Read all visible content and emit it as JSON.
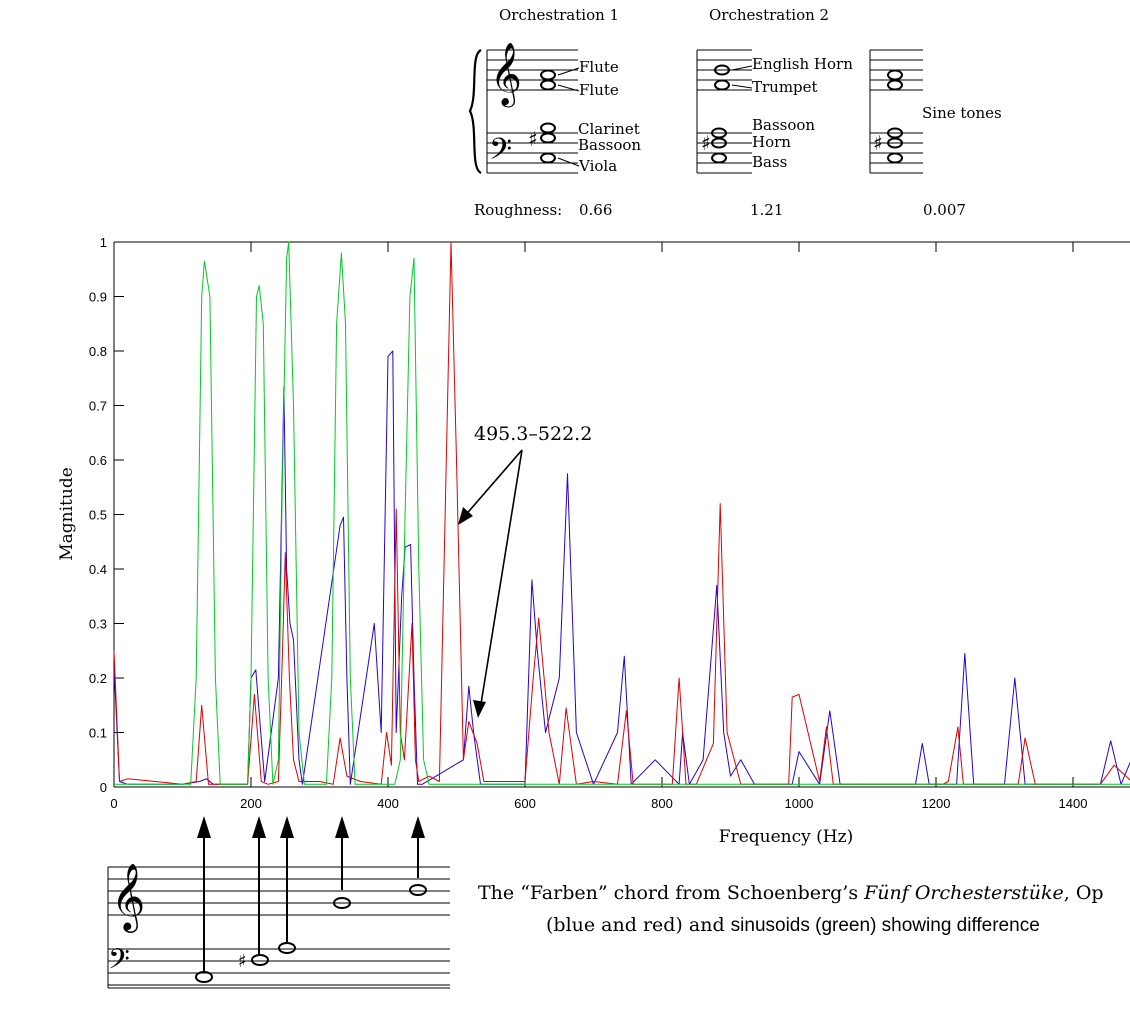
{
  "header": {
    "orchestrations": [
      {
        "title": "Orchestration 1",
        "instruments": [
          "Flute",
          "Flute",
          "Clarinet",
          "Bassoon",
          "Viola"
        ]
      },
      {
        "title": "Orchestration 2",
        "instruments": [
          "English Horn",
          "Trumpet",
          "Bassoon",
          "Horn",
          "Bass"
        ]
      },
      {
        "title": "",
        "instruments": [
          "Sine tones"
        ]
      }
    ],
    "roughness_label": "Roughness:",
    "roughness_values": [
      "0.66",
      "1.21",
      "0.007"
    ]
  },
  "annotation": "495.3–522.2",
  "caption": {
    "line1_a": "The “Farben” chord from Schoenberg’s ",
    "line1_italic": "Fünf Orchesterstüke",
    "line1_b": ", Op",
    "line2_a": "(blue and red) and ",
    "line2_b": "sinusoids (green) showing difference"
  },
  "colors": {
    "blue": "#2a00d0",
    "red": "#e00000",
    "green": "#00cc22"
  },
  "chart_data": {
    "type": "line",
    "xlabel": "Frequency (Hz)",
    "ylabel": "Magnitude",
    "xlim": [
      0,
      1490
    ],
    "ylim": [
      0,
      1
    ],
    "x_ticks": [
      "0",
      "200",
      "400",
      "600",
      "800",
      "1000",
      "1200",
      "1400"
    ],
    "y_ticks": [
      "0",
      "0.1",
      "0.2",
      "0.3",
      "0.4",
      "0.5",
      "0.6",
      "0.7",
      "0.8",
      "0.9",
      "1"
    ],
    "grid": false,
    "series": [
      {
        "color": "blue",
        "x": [
          0,
          8,
          20,
          100,
          125,
          135,
          145,
          195,
          200,
          207,
          213,
          220,
          240,
          248,
          252,
          257,
          262,
          270,
          275,
          330,
          335,
          340,
          345,
          380,
          390,
          400,
          407,
          412,
          420,
          425,
          433,
          438,
          443,
          450,
          510,
          518,
          525,
          535,
          600,
          610,
          618,
          630,
          650,
          662,
          675,
          700,
          735,
          745,
          755,
          790,
          825,
          830,
          840,
          860,
          880,
          890,
          900,
          915,
          935,
          990,
          1000,
          1030,
          1045,
          1060,
          1170,
          1180,
          1190,
          1230,
          1242,
          1255,
          1300,
          1315,
          1330,
          1440,
          1455,
          1470,
          1490
        ],
        "y": [
          0.22,
          0.01,
          0.005,
          0.005,
          0.01,
          0.015,
          0.005,
          0.005,
          0.2,
          0.215,
          0.12,
          0.01,
          0.2,
          0.735,
          0.4,
          0.3,
          0.27,
          0.05,
          0.005,
          0.48,
          0.495,
          0.2,
          0.005,
          0.3,
          0.1,
          0.79,
          0.8,
          0.1,
          0.35,
          0.44,
          0.445,
          0.2,
          0.005,
          0.005,
          0.05,
          0.185,
          0.1,
          0.005,
          0.005,
          0.38,
          0.25,
          0.1,
          0.2,
          0.575,
          0.1,
          0.005,
          0.1,
          0.24,
          0.005,
          0.05,
          0.005,
          0.1,
          0.005,
          0.05,
          0.37,
          0.1,
          0.02,
          0.05,
          0.005,
          0.005,
          0.065,
          0.005,
          0.14,
          0.005,
          0.005,
          0.08,
          0.005,
          0.005,
          0.245,
          0.005,
          0.005,
          0.2,
          0.005,
          0.005,
          0.085,
          0.005,
          0.065
        ]
      },
      {
        "color": "red",
        "x": [
          0,
          8,
          20,
          100,
          120,
          128,
          138,
          195,
          205,
          215,
          225,
          240,
          246,
          250,
          256,
          262,
          270,
          300,
          320,
          330,
          340,
          360,
          390,
          398,
          405,
          412,
          418,
          424,
          435,
          440,
          445,
          460,
          475,
          492,
          500,
          510,
          518,
          530,
          540,
          600,
          612,
          620,
          635,
          650,
          660,
          675,
          700,
          735,
          748,
          758,
          780,
          815,
          825,
          835,
          850,
          875,
          885,
          895,
          915,
          935,
          985,
          990,
          1000,
          1030,
          1040,
          1050,
          1200,
          1210,
          1218,
          1232,
          1240,
          1258,
          1300,
          1310,
          1320,
          1330,
          1345,
          1440,
          1460,
          1490
        ],
        "y": [
          0.25,
          0.01,
          0.015,
          0.005,
          0.01,
          0.15,
          0.005,
          0.005,
          0.17,
          0.01,
          0.005,
          0.01,
          0.25,
          0.43,
          0.2,
          0.05,
          0.01,
          0.01,
          0.005,
          0.09,
          0.02,
          0.01,
          0.005,
          0.1,
          0.04,
          0.51,
          0.1,
          0.05,
          0.3,
          0.05,
          0.01,
          0.02,
          0.01,
          1.0,
          0.6,
          0.05,
          0.12,
          0.08,
          0.01,
          0.01,
          0.2,
          0.31,
          0.1,
          0.005,
          0.145,
          0.005,
          0.01,
          0.005,
          0.14,
          0.005,
          0.005,
          0.005,
          0.2,
          0.005,
          0.005,
          0.08,
          0.52,
          0.1,
          0.005,
          0.005,
          0.005,
          0.165,
          0.17,
          0.01,
          0.11,
          0.005,
          0.005,
          0.005,
          0.01,
          0.11,
          0.005,
          0.005,
          0.005,
          0.005,
          0.005,
          0.09,
          0.005,
          0.005,
          0.04,
          0.005
        ]
      },
      {
        "color": "green",
        "x": [
          0,
          100,
          112,
          120,
          128,
          132,
          140,
          148,
          155,
          185,
          195,
          200,
          208,
          212,
          218,
          225,
          232,
          240,
          245,
          252,
          255,
          262,
          270,
          278,
          310,
          318,
          325,
          332,
          338,
          345,
          352,
          360,
          410,
          418,
          425,
          432,
          438,
          445,
          452,
          460,
          1490
        ],
        "y": [
          0.005,
          0.005,
          0.005,
          0.2,
          0.9,
          0.965,
          0.9,
          0.2,
          0.005,
          0.005,
          0.005,
          0.2,
          0.9,
          0.92,
          0.85,
          0.2,
          0.005,
          0.05,
          0.5,
          0.97,
          1.0,
          0.7,
          0.1,
          0.005,
          0.005,
          0.2,
          0.85,
          0.98,
          0.85,
          0.2,
          0.005,
          0.005,
          0.005,
          0.05,
          0.5,
          0.9,
          0.97,
          0.4,
          0.05,
          0.005,
          0.005
        ]
      }
    ]
  }
}
